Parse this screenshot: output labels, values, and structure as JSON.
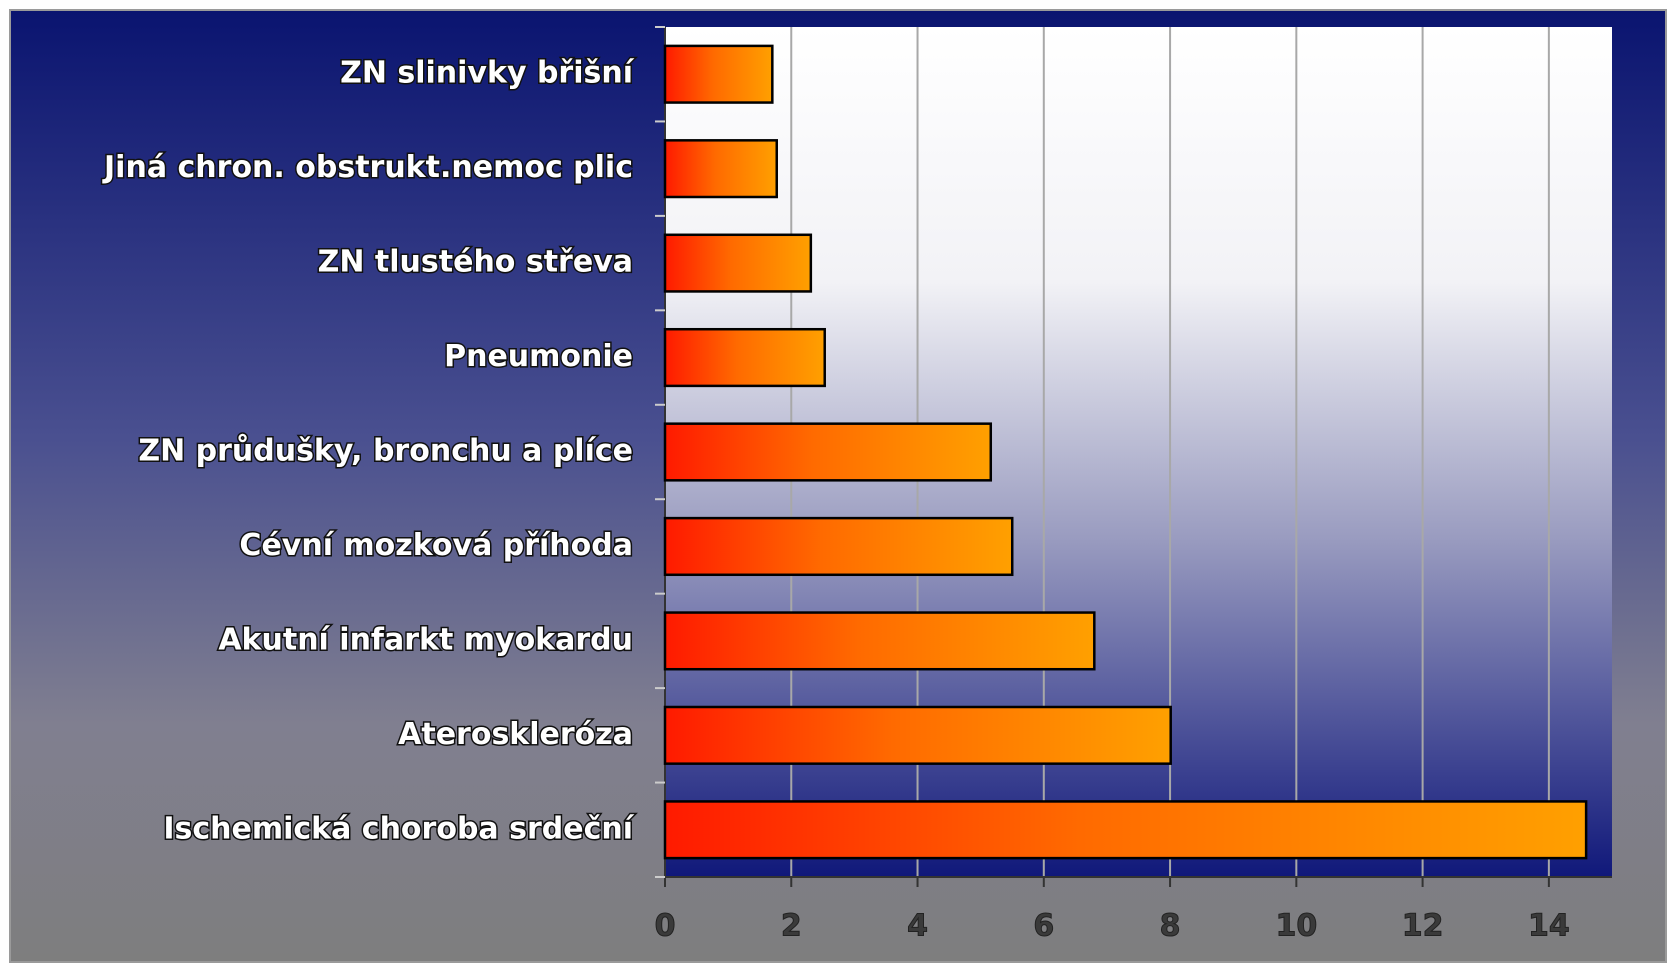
{
  "chart_data": {
    "type": "barh",
    "categories": [
      "ZN slinivky břišní",
      "Jiná chron. obstrukt.nemoc plic",
      "ZN tlustého střeva",
      "Pneumonie",
      "ZN průdušky, bronchu a plíce",
      "Cévní mozková příhoda",
      "Akutní infarkt myokardu",
      "Ateroskleróza",
      "Ischemická choroba srdeční"
    ],
    "values": [
      1.7,
      1.77,
      2.31,
      2.53,
      5.16,
      5.5,
      6.8,
      8.01,
      14.59
    ],
    "xlim": [
      0,
      15
    ],
    "xticks": [
      0,
      2,
      4,
      6,
      8,
      10,
      12,
      14
    ],
    "grid": true
  }
}
